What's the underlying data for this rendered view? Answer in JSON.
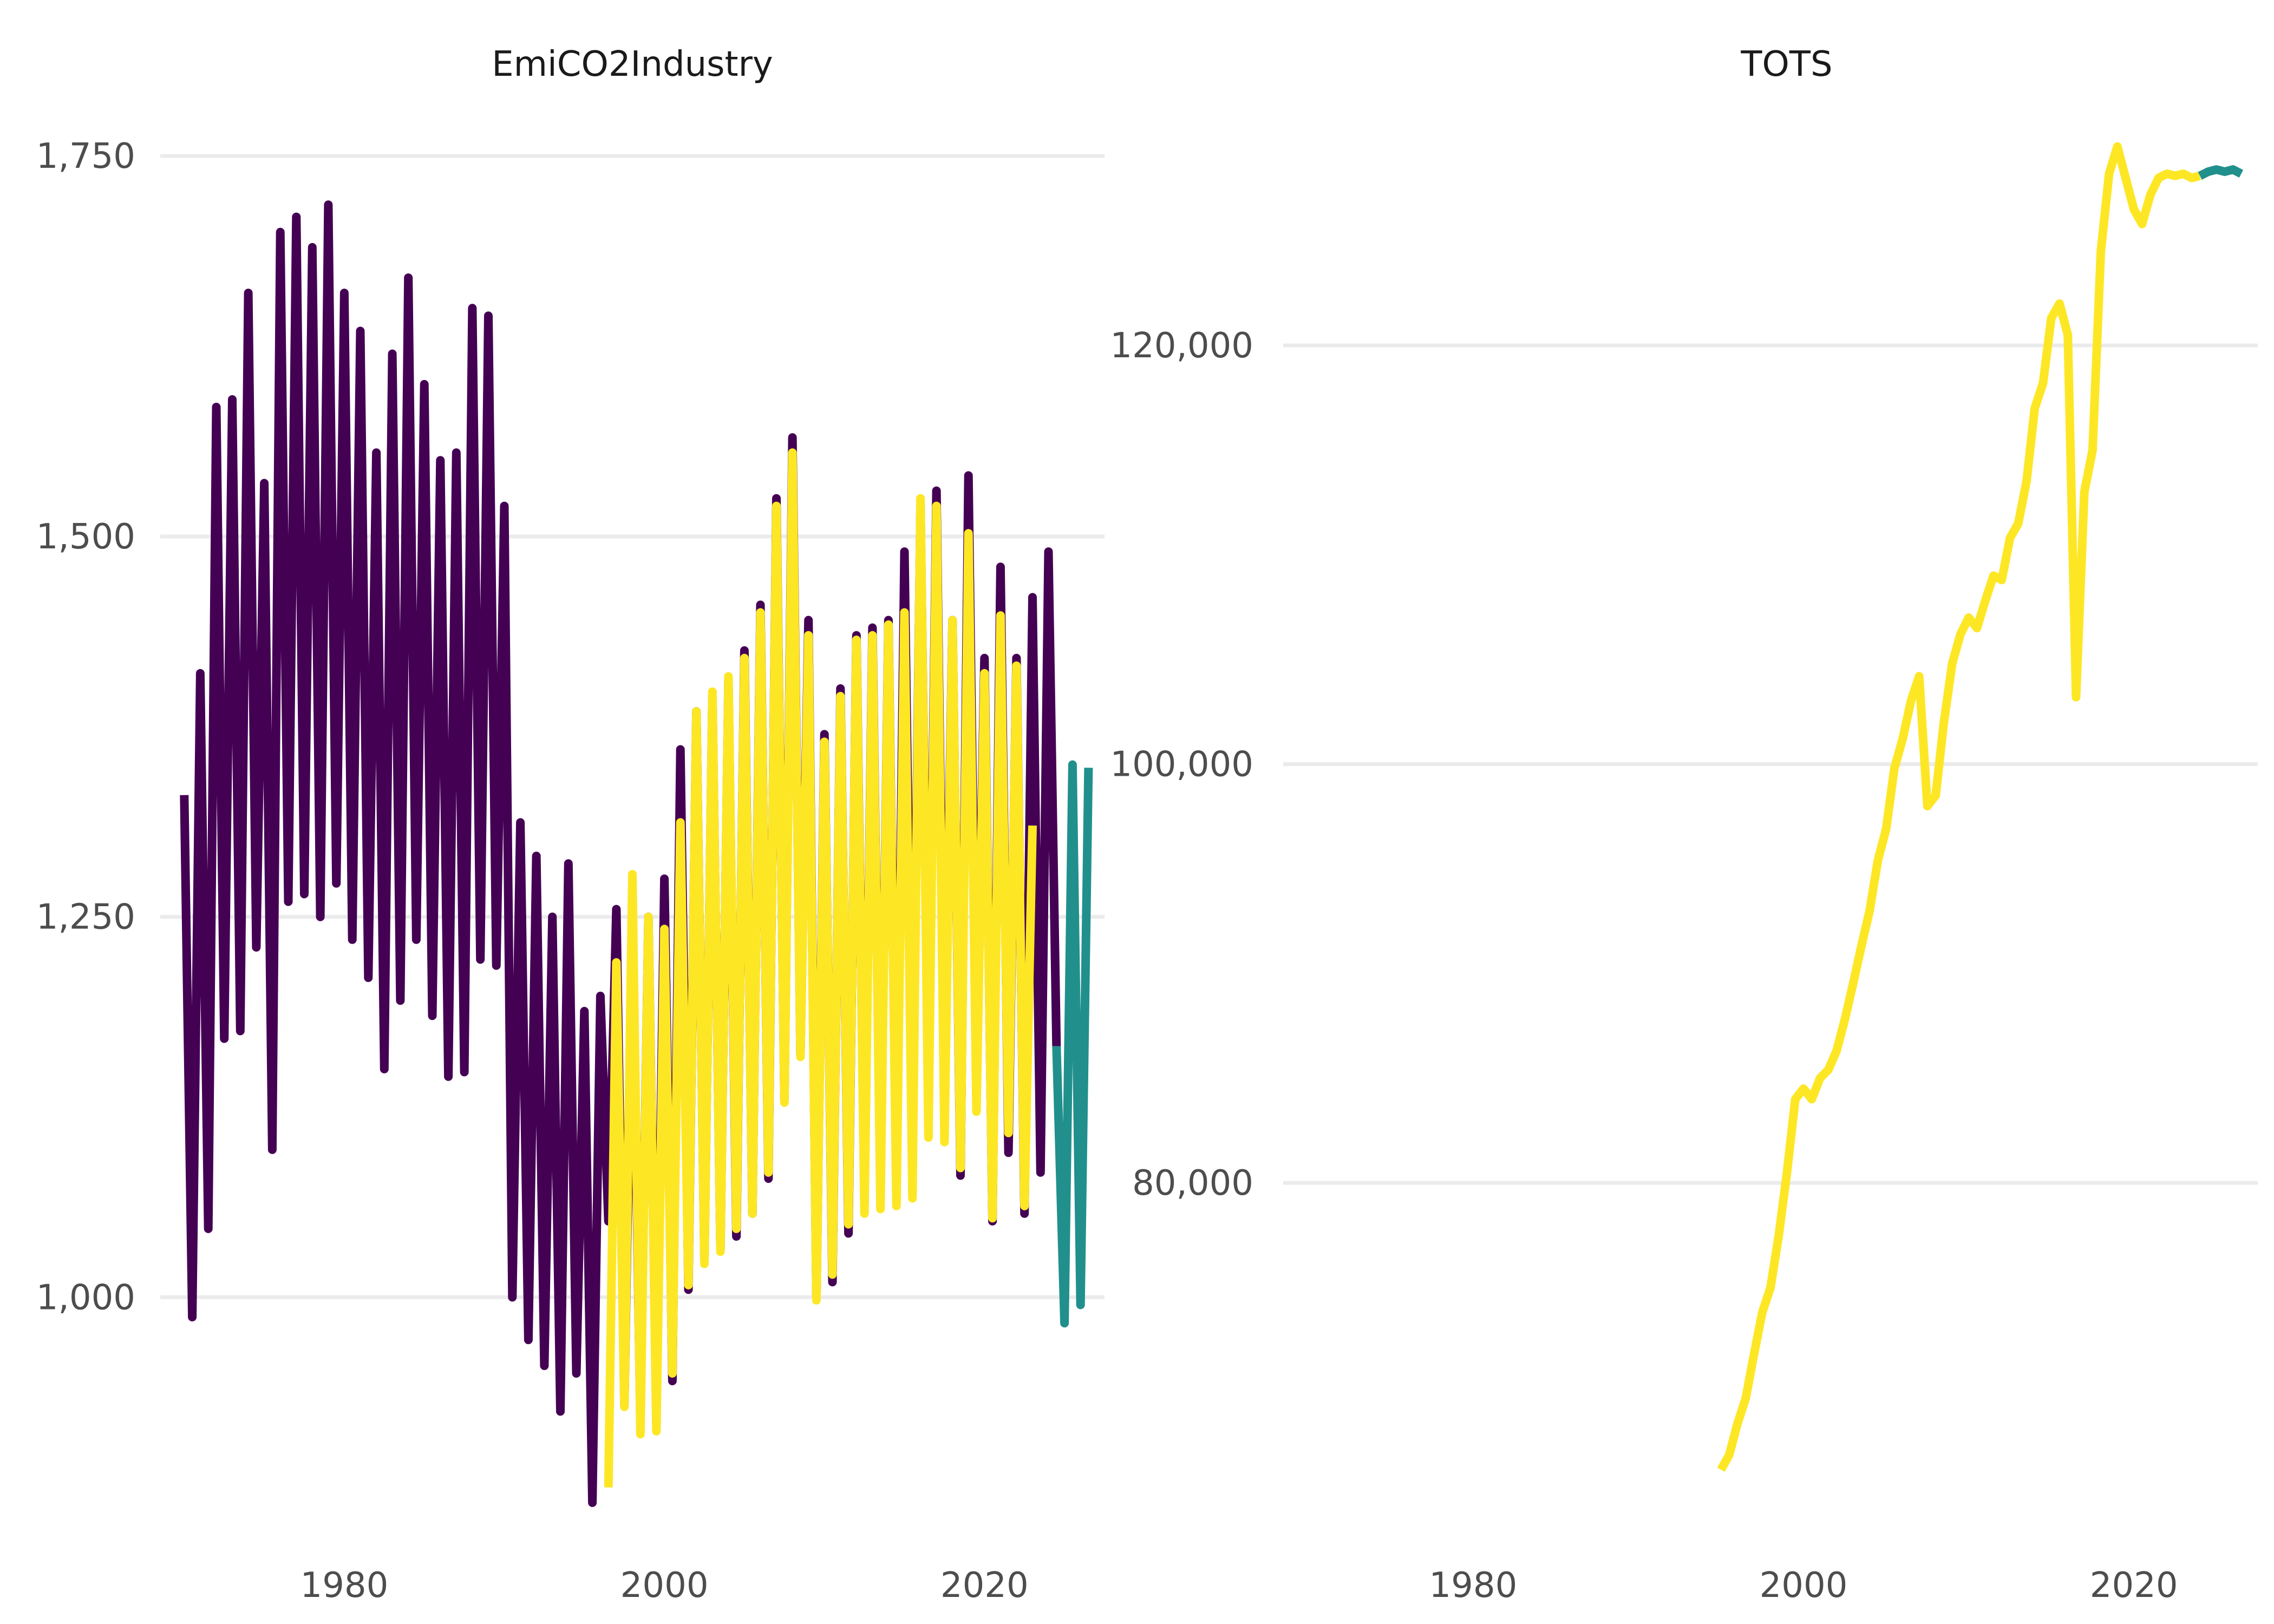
{
  "chart_data": [
    {
      "type": "line",
      "title": "EmiCO2Industry",
      "xlabel": "",
      "ylabel": "",
      "xlim": [
        1968.5,
        2027.5
      ],
      "ylim": [
        855,
        1770
      ],
      "x_ticks": [
        1980,
        2000,
        2020
      ],
      "x_tick_labels": [
        "1980",
        "2000",
        "2020"
      ],
      "y_ticks": [
        1000,
        1250,
        1500,
        1750
      ],
      "y_tick_labels": [
        "1,000",
        "1,250",
        "1,500",
        "1,750"
      ],
      "grid": true,
      "legend": "none",
      "series": [
        {
          "color": "#440154",
          "x": [
            1970.0,
            1970.5,
            1971.0,
            1971.5,
            1972.0,
            1972.5,
            1973.0,
            1973.5,
            1974.0,
            1974.5,
            1975.0,
            1975.5,
            1976.0,
            1976.5,
            1977.0,
            1977.5,
            1978.0,
            1978.5,
            1979.0,
            1979.5,
            1980.0,
            1980.5,
            1981.0,
            1981.5,
            1982.0,
            1982.5,
            1983.0,
            1983.5,
            1984.0,
            1984.5,
            1985.0,
            1985.5,
            1986.0,
            1986.5,
            1987.0,
            1987.5,
            1988.0,
            1988.5,
            1989.0,
            1989.5,
            1990.0,
            1990.5,
            1991.0,
            1991.5,
            1992.0,
            1992.5,
            1993.0,
            1993.5,
            1994.0,
            1994.5,
            1995.0,
            1995.5,
            1996.0,
            1996.5,
            1997.0,
            1997.5,
            1998.0,
            1998.5,
            1999.0,
            1999.5,
            2000.0,
            2000.5,
            2001.0,
            2001.5,
            2002.0,
            2002.5,
            2003.0,
            2003.5,
            2004.0,
            2004.5,
            2005.0,
            2005.5,
            2006.0,
            2006.5,
            2007.0,
            2007.5,
            2008.0,
            2008.5,
            2009.0,
            2009.5,
            2010.0,
            2010.5,
            2011.0,
            2011.5,
            2012.0,
            2012.5,
            2013.0,
            2013.5,
            2014.0,
            2014.5,
            2015.0,
            2015.5,
            2016.0,
            2016.5,
            2017.0,
            2017.5,
            2018.0,
            2018.5,
            2019.0,
            2019.5,
            2020.0,
            2020.5,
            2021.0,
            2021.5,
            2022.0,
            2022.5,
            2023.0,
            2023.5,
            2024.0,
            2024.5
          ],
          "y": [
            1330,
            987,
            1410,
            1045,
            1585,
            1170,
            1590,
            1175,
            1660,
            1230,
            1535,
            1097,
            1700,
            1260,
            1710,
            1265,
            1690,
            1250,
            1718,
            1272,
            1660,
            1235,
            1635,
            1210,
            1555,
            1150,
            1620,
            1195,
            1670,
            1235,
            1600,
            1185,
            1550,
            1145,
            1555,
            1148,
            1650,
            1222,
            1645,
            1218,
            1520,
            1000,
            1312,
            972,
            1290,
            955,
            1250,
            925,
            1285,
            950,
            1188,
            865,
            1198,
            1050,
            1255,
            930,
            1240,
            918,
            1250,
            920,
            1275,
            945,
            1360,
            1005,
            1385,
            1025,
            1395,
            1032,
            1405,
            1040,
            1425,
            1055,
            1455,
            1078,
            1525,
            1130,
            1565,
            1160,
            1445,
            1000,
            1370,
            1010,
            1400,
            1042,
            1435,
            1062,
            1440,
            1066,
            1445,
            1068,
            1490,
            1102,
            1520,
            1125,
            1530,
            1132,
            1445,
            1080,
            1540,
            1140,
            1420,
            1050,
            1480,
            1095,
            1420,
            1055,
            1460,
            1082,
            1490,
            1165
          ]
        },
        {
          "color": "#fde725",
          "x": [
            1996.5,
            1997.0,
            1997.5,
            1998.0,
            1998.5,
            1999.0,
            1999.5,
            2000.0,
            2000.5,
            2001.0,
            2001.5,
            2002.0,
            2002.5,
            2003.0,
            2003.5,
            2004.0,
            2004.5,
            2005.0,
            2005.5,
            2006.0,
            2006.5,
            2007.0,
            2007.5,
            2008.0,
            2008.5,
            2009.0,
            2009.5,
            2010.0,
            2010.5,
            2011.0,
            2011.5,
            2012.0,
            2012.5,
            2013.0,
            2013.5,
            2014.0,
            2014.5,
            2015.0,
            2015.5,
            2016.0,
            2016.5,
            2017.0,
            2017.5,
            2018.0,
            2018.5,
            2019.0,
            2019.5,
            2020.0,
            2020.5,
            2021.0,
            2021.5,
            2022.0,
            2022.5,
            2023.0
          ],
          "y": [
            875,
            1220,
            928,
            1278,
            910,
            1250,
            912,
            1242,
            950,
            1312,
            1008,
            1385,
            1022,
            1398,
            1030,
            1408,
            1045,
            1420,
            1055,
            1450,
            1082,
            1520,
            1128,
            1555,
            1158,
            1435,
            998,
            1365,
            1015,
            1395,
            1048,
            1432,
            1055,
            1435,
            1058,
            1442,
            1060,
            1450,
            1065,
            1525,
            1105,
            1520,
            1102,
            1445,
            1085,
            1502,
            1122,
            1410,
            1052,
            1448,
            1108,
            1415,
            1060,
            1310
          ]
        },
        {
          "color": "#21908c",
          "x": [
            2024.5,
            2025.0,
            2025.5,
            2026.0,
            2026.5
          ],
          "y": [
            1165,
            983,
            1350,
            995,
            1348
          ]
        }
      ]
    },
    {
      "type": "line",
      "title": "TOTS",
      "xlabel": "",
      "ylabel": "",
      "xlim": [
        1968.5,
        2027.5
      ],
      "ylim": [
        64000,
        130500
      ],
      "x_ticks": [
        1980,
        2000,
        2020
      ],
      "x_tick_labels": [
        "1980",
        "2000",
        "2020"
      ],
      "y_ticks": [
        80000,
        100000,
        120000
      ],
      "y_tick_labels": [
        "80,000",
        "100,000",
        "120,000"
      ],
      "grid": true,
      "legend": "none",
      "series": [
        {
          "color": "#fde725",
          "x": [
            1995.0,
            1995.5,
            1996.0,
            1996.5,
            1997.0,
            1997.5,
            1998.0,
            1998.5,
            1999.0,
            1999.5,
            2000.0,
            2000.5,
            2001.0,
            2001.5,
            2002.0,
            2002.5,
            2003.0,
            2003.5,
            2004.0,
            2004.5,
            2005.0,
            2005.5,
            2006.0,
            2006.5,
            2007.0,
            2007.5,
            2008.0,
            2008.5,
            2009.0,
            2009.5,
            2010.0,
            2010.5,
            2011.0,
            2011.5,
            2012.0,
            2012.5,
            2013.0,
            2013.5,
            2014.0,
            2014.5,
            2015.0,
            2015.5,
            2016.0,
            2016.5,
            2017.0,
            2017.5,
            2018.0,
            2018.5,
            2019.0,
            2019.5,
            2020.0,
            2020.5,
            2021.0,
            2021.5,
            2022.0,
            2022.5,
            2023.0,
            2023.5,
            2024.0
          ],
          "y": [
            66300,
            67000,
            68500,
            69700,
            71800,
            73800,
            75000,
            77500,
            80500,
            84000,
            84500,
            84000,
            85000,
            85400,
            86300,
            87800,
            89500,
            91300,
            93000,
            95400,
            96900,
            99800,
            101200,
            103000,
            104200,
            98000,
            98500,
            102000,
            104800,
            106200,
            107000,
            106500,
            107800,
            109000,
            108800,
            110800,
            111500,
            113500,
            117000,
            118200,
            121300,
            122000,
            120500,
            103200,
            113000,
            115000,
            124500,
            128200,
            129500,
            128000,
            126500,
            125800,
            127200,
            128000,
            128200,
            128100,
            128200,
            128000,
            128100
          ]
        },
        {
          "color": "#21908c",
          "x": [
            2024.0,
            2024.5,
            2025.0,
            2025.5,
            2026.0,
            2026.5
          ],
          "y": [
            128100,
            128300,
            128400,
            128300,
            128400,
            128200
          ]
        }
      ]
    }
  ]
}
